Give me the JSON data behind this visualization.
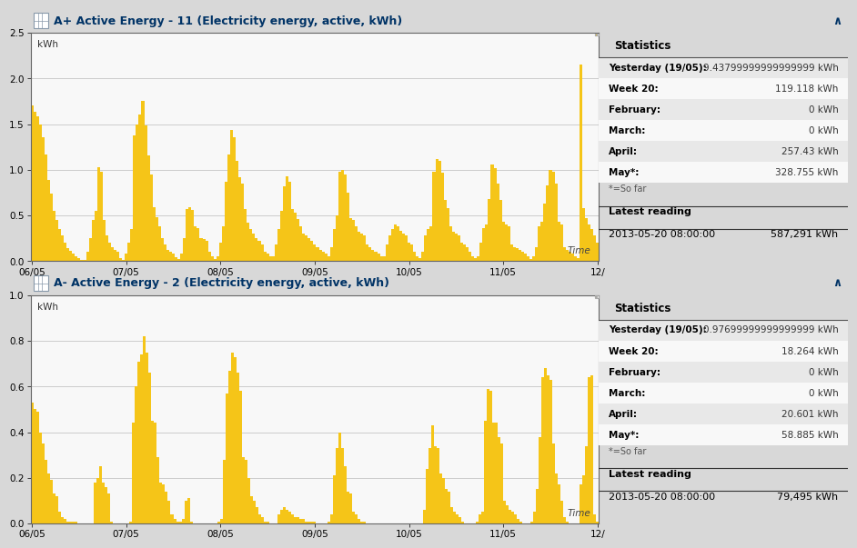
{
  "panel1": {
    "title": "A+ Active Energy - 11 (Electricity energy, active, kWh)",
    "ylabel": "kWh",
    "xlabel": "Time",
    "ylim": [
      0,
      2.5
    ],
    "yticks": [
      0.0,
      0.5,
      1.0,
      1.5,
      2.0,
      2.5
    ],
    "bar_color": "#F5C518",
    "bar_edge_color": "#D4A000",
    "stats_title": "Statistics",
    "stats": [
      [
        "Yesterday (19/05):",
        "9.43799999999999999 kWh"
      ],
      [
        "Week 20:",
        "119.118 kWh"
      ],
      [
        "February:",
        "0 kWh"
      ],
      [
        "March:",
        "0 kWh"
      ],
      [
        "April:",
        "257.43 kWh"
      ],
      [
        "May*:",
        "328.755 kWh"
      ]
    ],
    "so_far": "*=So far",
    "latest_reading_label": "Latest reading",
    "latest_reading_date": "2013-05-20 08:00:00",
    "latest_reading_value": "587,291 kWh",
    "bars": [
      1.7,
      1.63,
      1.58,
      1.5,
      1.36,
      1.17,
      0.89,
      0.74,
      0.55,
      0.45,
      0.35,
      0.28,
      0.2,
      0.14,
      0.11,
      0.08,
      0.05,
      0.03,
      0.01,
      0.01,
      0.1,
      0.25,
      0.45,
      0.55,
      1.03,
      0.98,
      0.45,
      0.28,
      0.2,
      0.15,
      0.12,
      0.1,
      0.03,
      0.01,
      0.08,
      0.2,
      0.35,
      1.38,
      1.5,
      1.6,
      1.75,
      1.49,
      1.16,
      0.95,
      0.59,
      0.48,
      0.38,
      0.25,
      0.18,
      0.12,
      0.1,
      0.08,
      0.04,
      0.02,
      0.08,
      0.25,
      0.57,
      0.59,
      0.56,
      0.38,
      0.36,
      0.25,
      0.24,
      0.22,
      0.1,
      0.05,
      0.02,
      0.05,
      0.2,
      0.38,
      0.87,
      1.17,
      1.44,
      1.36,
      1.1,
      0.92,
      0.85,
      0.57,
      0.42,
      0.35,
      0.3,
      0.25,
      0.22,
      0.18,
      0.1,
      0.08,
      0.05,
      0.05,
      0.18,
      0.35,
      0.55,
      0.82,
      0.93,
      0.87,
      0.57,
      0.53,
      0.46,
      0.38,
      0.3,
      0.28,
      0.25,
      0.22,
      0.18,
      0.15,
      0.12,
      0.1,
      0.08,
      0.05,
      0.15,
      0.35,
      0.5,
      0.98,
      1.0,
      0.95,
      0.75,
      0.47,
      0.45,
      0.38,
      0.32,
      0.3,
      0.28,
      0.18,
      0.15,
      0.12,
      0.1,
      0.08,
      0.05,
      0.05,
      0.18,
      0.28,
      0.35,
      0.4,
      0.38,
      0.33,
      0.3,
      0.28,
      0.2,
      0.18,
      0.1,
      0.05,
      0.03,
      0.1,
      0.28,
      0.35,
      0.38,
      0.98,
      1.12,
      1.1,
      0.97,
      0.67,
      0.58,
      0.38,
      0.32,
      0.3,
      0.28,
      0.2,
      0.18,
      0.15,
      0.1,
      0.05,
      0.03,
      0.05,
      0.2,
      0.36,
      0.4,
      0.68,
      1.06,
      1.02,
      0.85,
      0.67,
      0.43,
      0.4,
      0.38,
      0.18,
      0.15,
      0.14,
      0.12,
      0.1,
      0.08,
      0.05,
      0.02,
      0.05,
      0.15,
      0.38,
      0.43,
      0.63,
      0.83,
      1.0,
      0.98,
      0.85,
      0.43,
      0.4,
      0.15,
      0.12,
      0.1,
      0.08,
      0.05,
      0.03,
      2.15,
      0.58,
      0.47,
      0.4,
      0.35,
      0.28,
      0.2
    ]
  },
  "panel2": {
    "title": "A- Active Energy - 2 (Electricity energy, active, kWh)",
    "ylabel": "kWh",
    "xlabel": "Time",
    "ylim": [
      0,
      1.0
    ],
    "yticks": [
      0.0,
      0.2,
      0.4,
      0.6,
      0.8,
      1.0
    ],
    "bar_color": "#F5C518",
    "bar_edge_color": "#D4A000",
    "stats_title": "Statistics",
    "stats": [
      [
        "Yesterday (19/05):",
        "0.97699999999999999 kWh"
      ],
      [
        "Week 20:",
        "18.264 kWh"
      ],
      [
        "February:",
        "0 kWh"
      ],
      [
        "March:",
        "0 kWh"
      ],
      [
        "April:",
        "20.601 kWh"
      ],
      [
        "May*:",
        "58.885 kWh"
      ]
    ],
    "so_far": "*=So far",
    "latest_reading_label": "Latest reading",
    "latest_reading_date": "2013-05-20 08:00:00",
    "latest_reading_value": "79,495 kWh",
    "bars": [
      0.53,
      0.5,
      0.49,
      0.4,
      0.35,
      0.28,
      0.22,
      0.19,
      0.13,
      0.12,
      0.05,
      0.03,
      0.02,
      0.01,
      0.01,
      0.01,
      0.01,
      0.0,
      0.0,
      0.0,
      0.0,
      0.0,
      0.0,
      0.18,
      0.2,
      0.25,
      0.18,
      0.16,
      0.13,
      0.01,
      0.0,
      0.0,
      0.0,
      0.0,
      0.0,
      0.0,
      0.01,
      0.44,
      0.6,
      0.71,
      0.74,
      0.82,
      0.75,
      0.66,
      0.45,
      0.44,
      0.29,
      0.18,
      0.17,
      0.14,
      0.1,
      0.04,
      0.02,
      0.01,
      0.01,
      0.02,
      0.1,
      0.11,
      0.01,
      0.0,
      0.0,
      0.0,
      0.0,
      0.0,
      0.0,
      0.0,
      0.0,
      0.0,
      0.01,
      0.02,
      0.28,
      0.57,
      0.67,
      0.75,
      0.73,
      0.66,
      0.58,
      0.29,
      0.28,
      0.2,
      0.12,
      0.1,
      0.07,
      0.04,
      0.03,
      0.01,
      0.01,
      0.0,
      0.0,
      0.0,
      0.04,
      0.06,
      0.07,
      0.06,
      0.05,
      0.04,
      0.03,
      0.03,
      0.02,
      0.02,
      0.01,
      0.01,
      0.01,
      0.01,
      0.0,
      0.0,
      0.0,
      0.0,
      0.01,
      0.04,
      0.21,
      0.33,
      0.4,
      0.33,
      0.25,
      0.14,
      0.13,
      0.05,
      0.04,
      0.02,
      0.01,
      0.01,
      0.0,
      0.0,
      0.0,
      0.0,
      0.0,
      0.0,
      0.0,
      0.0,
      0.0,
      0.0,
      0.0,
      0.0,
      0.0,
      0.0,
      0.0,
      0.0,
      0.0,
      0.0,
      0.0,
      0.0,
      0.0,
      0.06,
      0.24,
      0.33,
      0.43,
      0.34,
      0.33,
      0.22,
      0.2,
      0.15,
      0.14,
      0.07,
      0.05,
      0.04,
      0.03,
      0.01,
      0.0,
      0.0,
      0.0,
      0.0,
      0.01,
      0.04,
      0.05,
      0.45,
      0.59,
      0.58,
      0.44,
      0.44,
      0.38,
      0.35,
      0.1,
      0.08,
      0.06,
      0.05,
      0.04,
      0.02,
      0.01,
      0.0,
      0.0,
      0.0,
      0.01,
      0.05,
      0.15,
      0.38,
      0.64,
      0.68,
      0.65,
      0.63,
      0.35,
      0.22,
      0.17,
      0.1,
      0.03,
      0.01,
      0.0,
      0.0,
      0.0,
      0.0,
      0.17,
      0.21,
      0.34,
      0.64,
      0.65,
      0.04,
      0.01
    ]
  },
  "title_bg_color": "#C8DCF0",
  "title_text_color": "#003366",
  "chart_bg_color": "#F8F8F8",
  "chart_border_color": "#666666",
  "stats_bg_color": "#FFFFFF",
  "stats_row_even": "#E8E8E8",
  "stats_row_odd": "#F8F8F8",
  "grid_color": "#CCCCCC",
  "fig_bg_color": "#D8D8D8",
  "xtick_labels": [
    "06/05",
    "07/05",
    "08/05",
    "09/05",
    "10/05",
    "11/05",
    "12/"
  ]
}
